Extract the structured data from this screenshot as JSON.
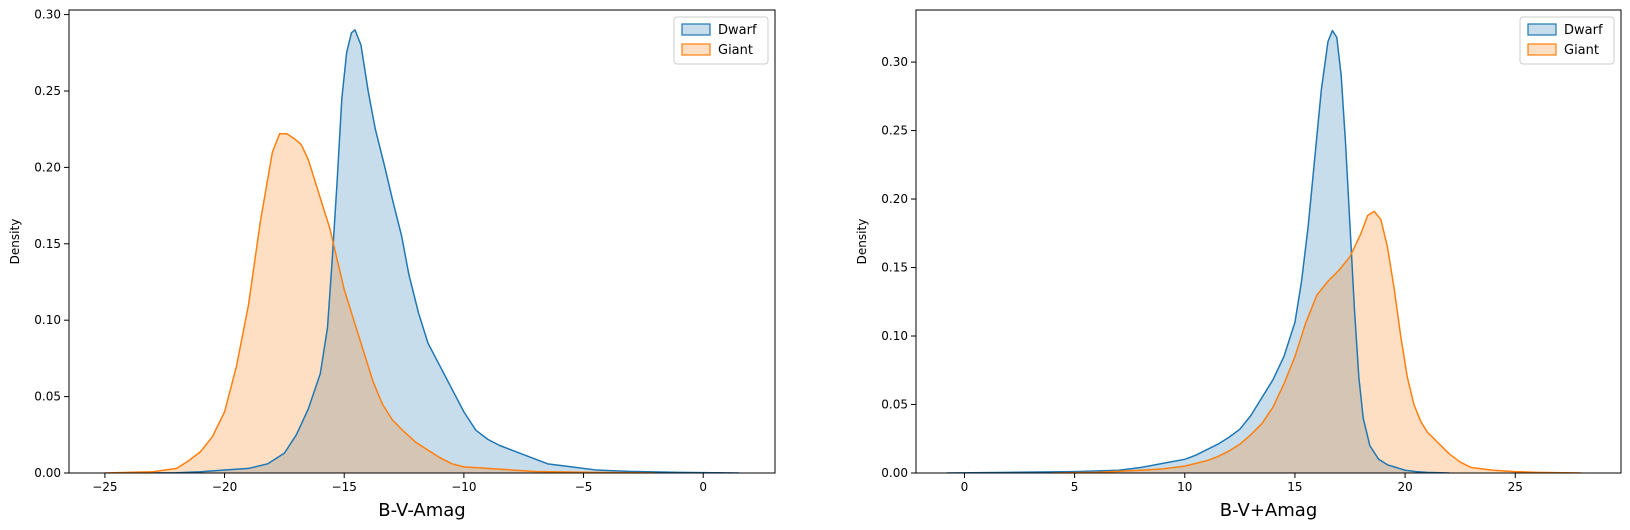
{
  "colors": {
    "dwarf": "#1f77b4",
    "giant": "#ff7f0e"
  },
  "chart_data": [
    {
      "type": "area",
      "xlabel": "B-V-Amag",
      "ylabel": "Density",
      "xlim": [
        -26.5,
        3.0
      ],
      "ylim": [
        0,
        0.303
      ],
      "xticks": [
        -25,
        -20,
        -15,
        -10,
        -5,
        0
      ],
      "yticks": [
        0.0,
        0.05,
        0.1,
        0.15,
        0.2,
        0.25,
        0.3
      ],
      "ytick_labels": [
        "0.00",
        "0.05",
        "0.10",
        "0.15",
        "0.20",
        "0.25",
        "0.30"
      ],
      "grid": false,
      "legend": "top-right",
      "series": [
        {
          "name": "Dwarf",
          "color": "#1f77b4",
          "x": [
            -24.0,
            -22.0,
            -21.0,
            -20.0,
            -19.0,
            -18.2,
            -17.5,
            -17.0,
            -16.5,
            -16.0,
            -15.7,
            -15.5,
            -15.3,
            -15.1,
            -14.9,
            -14.7,
            -14.55,
            -14.3,
            -14.0,
            -13.7,
            -13.3,
            -13.0,
            -12.6,
            -12.3,
            -11.9,
            -11.5,
            -11.0,
            -10.5,
            -10.0,
            -9.5,
            -9.0,
            -8.5,
            -7.5,
            -6.5,
            -5.5,
            -4.5,
            -3.0,
            -1.0,
            1.5
          ],
          "y": [
            0.0,
            0.0002,
            0.0008,
            0.002,
            0.003,
            0.006,
            0.013,
            0.025,
            0.042,
            0.065,
            0.095,
            0.14,
            0.19,
            0.245,
            0.275,
            0.288,
            0.29,
            0.28,
            0.25,
            0.225,
            0.2,
            0.18,
            0.155,
            0.13,
            0.105,
            0.085,
            0.07,
            0.055,
            0.04,
            0.028,
            0.022,
            0.018,
            0.012,
            0.006,
            0.004,
            0.002,
            0.001,
            0.0004,
            0.0
          ]
        },
        {
          "name": "Giant",
          "color": "#ff7f0e",
          "x": [
            -25.0,
            -23.0,
            -22.0,
            -21.5,
            -21.0,
            -20.5,
            -20.0,
            -19.5,
            -19.0,
            -18.5,
            -18.0,
            -17.7,
            -17.4,
            -17.1,
            -16.8,
            -16.5,
            -16.2,
            -15.9,
            -15.6,
            -15.3,
            -15.0,
            -14.6,
            -14.2,
            -13.8,
            -13.4,
            -13.0,
            -12.5,
            -12.0,
            -11.5,
            -11.0,
            -10.5,
            -10.0,
            -9.0,
            -8.0,
            -7.0,
            -5.0,
            -3.0,
            -2.0
          ],
          "y": [
            0.0,
            0.0008,
            0.003,
            0.008,
            0.014,
            0.024,
            0.04,
            0.07,
            0.11,
            0.165,
            0.21,
            0.222,
            0.222,
            0.219,
            0.215,
            0.205,
            0.19,
            0.175,
            0.16,
            0.14,
            0.12,
            0.1,
            0.08,
            0.06,
            0.045,
            0.035,
            0.027,
            0.02,
            0.015,
            0.01,
            0.006,
            0.004,
            0.003,
            0.002,
            0.001,
            0.0005,
            0.0002,
            0.0
          ]
        }
      ]
    },
    {
      "type": "area",
      "xlabel": "B-V+Amag",
      "ylabel": "Density",
      "xlim": [
        -2.2,
        29.8
      ],
      "ylim": [
        0,
        0.338
      ],
      "xticks": [
        0,
        5,
        10,
        15,
        20,
        25
      ],
      "yticks": [
        0.0,
        0.05,
        0.1,
        0.15,
        0.2,
        0.25,
        0.3
      ],
      "ytick_labels": [
        "0.00",
        "0.05",
        "0.10",
        "0.15",
        "0.20",
        "0.25",
        "0.30"
      ],
      "grid": false,
      "legend": "top-right",
      "series": [
        {
          "name": "Dwarf",
          "color": "#1f77b4",
          "x": [
            -0.8,
            2.0,
            5.0,
            7.0,
            8.0,
            9.0,
            10.0,
            10.5,
            11.0,
            11.5,
            12.0,
            12.5,
            13.0,
            13.5,
            14.0,
            14.5,
            15.0,
            15.3,
            15.6,
            15.9,
            16.2,
            16.5,
            16.7,
            16.9,
            17.1,
            17.3,
            17.5,
            17.7,
            17.9,
            18.1,
            18.4,
            18.8,
            19.2,
            19.6,
            20.0,
            20.5,
            21.0,
            22.0
          ],
          "y": [
            0.0,
            0.0005,
            0.001,
            0.002,
            0.004,
            0.007,
            0.01,
            0.013,
            0.017,
            0.021,
            0.026,
            0.032,
            0.042,
            0.055,
            0.068,
            0.085,
            0.11,
            0.14,
            0.18,
            0.23,
            0.28,
            0.315,
            0.323,
            0.318,
            0.29,
            0.24,
            0.18,
            0.12,
            0.07,
            0.04,
            0.02,
            0.01,
            0.006,
            0.004,
            0.002,
            0.001,
            0.0005,
            0.0
          ]
        },
        {
          "name": "Giant",
          "color": "#ff7f0e",
          "x": [
            4.0,
            6.0,
            8.0,
            9.0,
            10.0,
            11.0,
            11.5,
            12.0,
            12.5,
            13.0,
            13.5,
            14.0,
            14.5,
            15.0,
            15.5,
            16.0,
            16.5,
            17.0,
            17.5,
            18.0,
            18.3,
            18.6,
            18.9,
            19.2,
            19.5,
            19.8,
            20.1,
            20.4,
            20.7,
            21.0,
            21.5,
            22.0,
            22.5,
            23.0,
            24.0,
            25.0,
            26.0,
            28.0
          ],
          "y": [
            0.0,
            0.0005,
            0.002,
            0.003,
            0.005,
            0.009,
            0.012,
            0.016,
            0.021,
            0.028,
            0.036,
            0.048,
            0.065,
            0.085,
            0.11,
            0.13,
            0.14,
            0.148,
            0.158,
            0.175,
            0.188,
            0.191,
            0.185,
            0.165,
            0.135,
            0.1,
            0.07,
            0.05,
            0.038,
            0.03,
            0.022,
            0.014,
            0.008,
            0.004,
            0.002,
            0.001,
            0.0005,
            0.0
          ]
        }
      ]
    }
  ]
}
